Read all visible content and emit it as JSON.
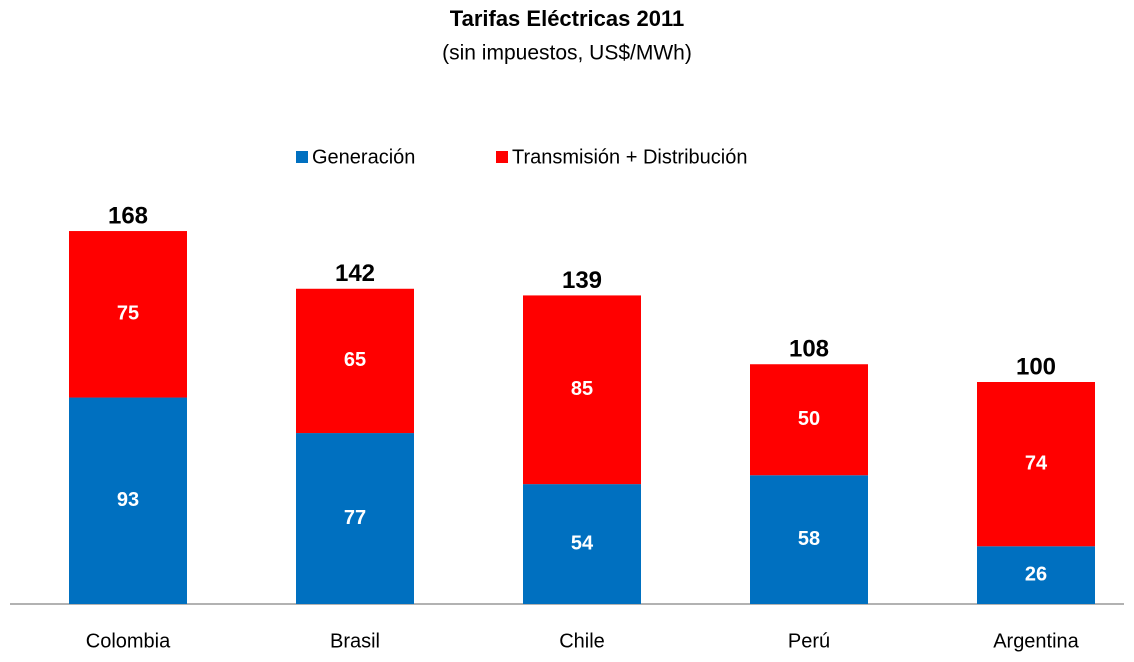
{
  "chart_data": {
    "type": "stacked-bar",
    "title": "Tarifas Eléctricas 2011",
    "subtitle": "(sin impuestos, US$/MWh)",
    "categories": [
      "Colombia",
      "Brasil",
      "Chile",
      "Perú",
      "Argentina"
    ],
    "series": [
      {
        "name": "Generación",
        "color": "#0070c0",
        "values": [
          93,
          77,
          54,
          58,
          26
        ]
      },
      {
        "name": "Transmisión + Distribución",
        "color": "#ff0000",
        "values": [
          75,
          65,
          85,
          50,
          74
        ]
      }
    ],
    "totals": [
      168,
      142,
      139,
      108,
      100
    ],
    "legend": "top"
  }
}
